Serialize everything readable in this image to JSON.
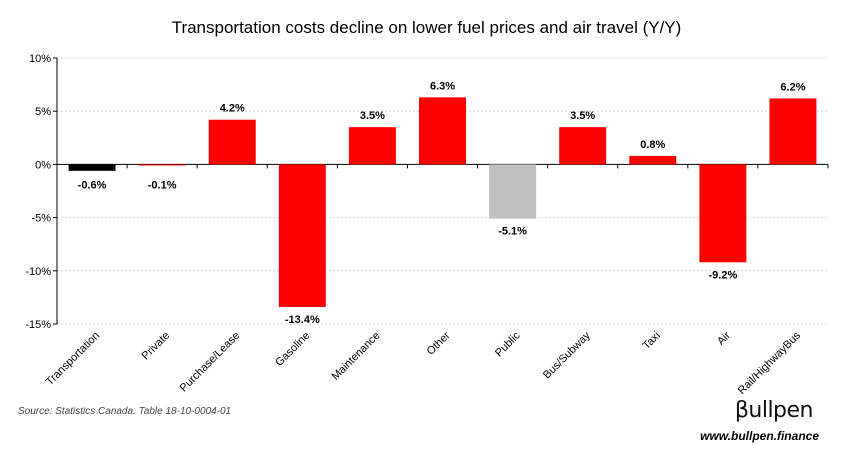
{
  "chart_data": {
    "type": "bar",
    "title": "Transportation costs decline on lower fuel prices and air travel (Y/Y)",
    "xlabel": "",
    "ylabel": "",
    "categories": [
      "Transportation",
      "Private",
      "Purchase/Lease",
      "Gasoline",
      "Maintenance",
      "Other",
      "Public",
      "Bus/Subway",
      "Taxi",
      "Air",
      "Rail/HighwayBus"
    ],
    "values": [
      -0.6,
      -0.1,
      4.2,
      -13.4,
      3.5,
      6.3,
      -5.1,
      3.5,
      0.8,
      -9.2,
      6.2
    ],
    "data_labels": [
      "-0.6%",
      "-0.1%",
      "4.2%",
      "-13.4%",
      "3.5%",
      "6.3%",
      "-5.1%",
      "3.5%",
      "0.8%",
      "-9.2%",
      "6.2%"
    ],
    "bar_colors": [
      "#000000",
      "#ff0000",
      "#ff0000",
      "#ff0000",
      "#ff0000",
      "#ff0000",
      "#c0c0c0",
      "#ff0000",
      "#ff0000",
      "#ff0000",
      "#ff0000"
    ],
    "ylim": [
      -15,
      10
    ],
    "yticks": [
      10,
      5,
      0,
      -5,
      -10,
      -15
    ],
    "ytick_labels": [
      "10%",
      "5%",
      "0%",
      "-5%",
      "-10%",
      "-15%"
    ],
    "grid": true,
    "legend": "none"
  },
  "footer": {
    "source": "Source: Statistics Canada. Table 18-10-0004-01",
    "brand": "βullpen",
    "website": "www.bullpen.finance"
  }
}
